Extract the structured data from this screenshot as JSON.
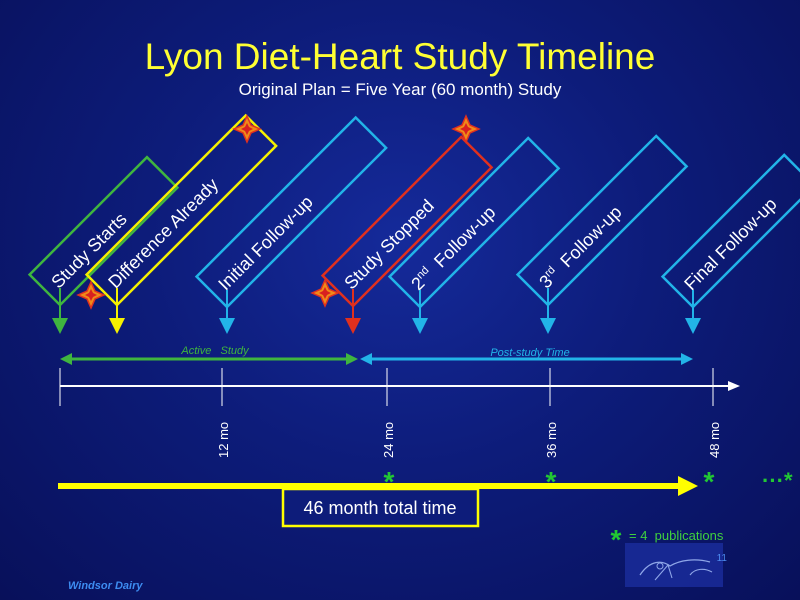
{
  "title": "Lyon Diet-Heart Study Timeline",
  "subtitle": "Original Plan = Five Year (60 month) Study",
  "events": [
    {
      "label": "Study Starts",
      "color": "#3fb53f"
    },
    {
      "label": "Difference Already",
      "color": "#f5f000"
    },
    {
      "label": "Initial Follow-up",
      "color": "#22b4e8"
    },
    {
      "label": "Study Stopped",
      "color": "#e0301e"
    },
    {
      "label_sup_num": "2",
      "label_sup": "nd",
      "label_rest": "Follow-up",
      "color": "#22b4e8"
    },
    {
      "label_sup_num": "3",
      "label_sup": "rd",
      "label_rest": "Follow-up",
      "color": "#22b4e8"
    },
    {
      "label": "Final Follow-up",
      "color": "#22b4e8"
    }
  ],
  "periods": {
    "active": "Active   Study",
    "post": "Post-study Time"
  },
  "ticks": [
    "12 mo",
    "24 mo",
    "36 mo",
    "48 mo"
  ],
  "total_bar": {
    "label": "46 month total time",
    "color": "#ffff00"
  },
  "publication_marker": "*",
  "continuation": "···*",
  "legend": "= 4  publications",
  "slide_number": "11",
  "footer": "Windsor Dairy"
}
